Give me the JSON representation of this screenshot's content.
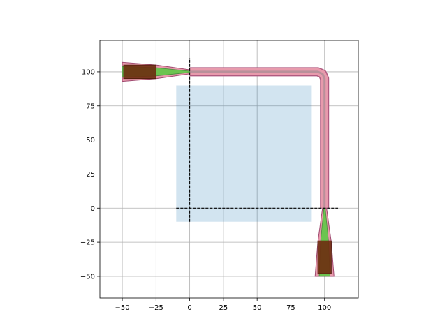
{
  "chart_data": {
    "type": "layout",
    "xlim": [
      -66.6,
      125
    ],
    "ylim": [
      -65.9,
      123
    ],
    "xticks": [
      {
        "value": -50,
        "label": "−50"
      },
      {
        "value": -25,
        "label": "−25"
      },
      0,
      25,
      50,
      75,
      100
    ],
    "yticks": [
      {
        "value": -50,
        "label": "−50"
      },
      {
        "value": -25,
        "label": "−25"
      },
      0,
      25,
      50,
      75,
      100
    ],
    "grid": true,
    "shapes": [
      {
        "style": "region",
        "x": [
          -10,
          90,
          90,
          -10
        ],
        "y": [
          -10,
          -10,
          90,
          90
        ]
      },
      {
        "style": "waveguide",
        "x": [
          0,
          95,
          98.5,
          100,
          100
        ],
        "y": [
          100,
          100,
          98.5,
          95,
          0
        ]
      },
      {
        "style": "cladding",
        "x": [
          -50,
          -25,
          0,
          0,
          -25,
          -50
        ],
        "y": [
          93,
          95,
          98.5,
          101.5,
          105,
          107
        ]
      },
      {
        "style": "core",
        "x": [
          -50,
          -25,
          0,
          0,
          -25,
          -50
        ],
        "y": [
          96,
          97,
          99.5,
          100.5,
          103,
          104
        ]
      },
      {
        "style": "doping",
        "x": [
          -49,
          -25,
          -25,
          -49
        ],
        "y": [
          95,
          95,
          105,
          105
        ]
      },
      {
        "style": "cladding",
        "x": [
          93,
          95,
          98.5,
          101.5,
          105,
          107
        ],
        "y": [
          -50,
          -25,
          0,
          0,
          -25,
          -50
        ]
      },
      {
        "style": "core",
        "x": [
          96,
          97,
          99.5,
          100.5,
          103,
          104
        ],
        "y": [
          -50,
          -25,
          0,
          0,
          -25,
          -50
        ]
      },
      {
        "style": "doping",
        "x": [
          95,
          105,
          105,
          95
        ],
        "y": [
          -24,
          -24,
          -48,
          -48
        ]
      },
      {
        "style": "guide",
        "x": [
          -10,
          110
        ],
        "y": [
          0,
          0
        ]
      },
      {
        "style": "guide",
        "x": [
          0,
          0
        ],
        "y": [
          -10,
          110
        ]
      }
    ]
  }
}
